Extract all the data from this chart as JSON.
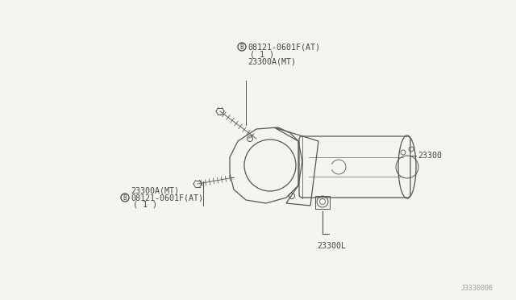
{
  "bg_color": "#f5f5f0",
  "line_color": "#555555",
  "text_color": "#444444",
  "fig_width": 6.4,
  "fig_height": 3.72,
  "dpi": 100,
  "watermark": "J3330006",
  "top_b_label1": "B 08121-0601F(AT)",
  "top_b_label2": "( 1 )",
  "top_b_label3": "23300A(MT)",
  "right_label": "23300",
  "bottom_label": "23300L",
  "bot_b_label1": "23300A(MT)",
  "bot_b_label2": "B 08121-0601F(AT)",
  "bot_b_label3": "( 1 )"
}
